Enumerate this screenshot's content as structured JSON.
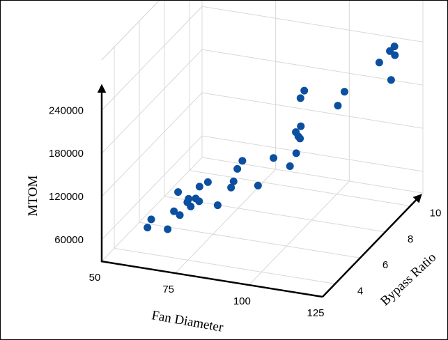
{
  "chart_data": {
    "type": "scatter",
    "projection": "3d",
    "title": "",
    "xlabel": "Fan Diameter",
    "ylabel": "Bypass Ratio",
    "zlabel": "MTOM",
    "xlim": [
      50,
      125
    ],
    "ylim": [
      3,
      11
    ],
    "zlim": [
      30000,
      310000
    ],
    "xticks": [
      "50",
      "75",
      "100",
      "125"
    ],
    "yticks": [
      "4",
      "6",
      "8",
      "10"
    ],
    "zticks": [
      "60000",
      "120000",
      "180000",
      "240000"
    ],
    "grid": true,
    "marker_color": "#0b4fa0",
    "points": [
      {
        "x": 60,
        "y": 4.3,
        "z": 60000
      },
      {
        "x": 60,
        "y": 4.6,
        "z": 66000
      },
      {
        "x": 66,
        "y": 4.5,
        "z": 58000
      },
      {
        "x": 64,
        "y": 5.8,
        "z": 85000
      },
      {
        "x": 66,
        "y": 5.0,
        "z": 74000
      },
      {
        "x": 68,
        "y": 5.0,
        "z": 70000
      },
      {
        "x": 68,
        "y": 5.6,
        "z": 77000
      },
      {
        "x": 68,
        "y": 5.7,
        "z": 80000
      },
      {
        "x": 70,
        "y": 5.4,
        "z": 76000
      },
      {
        "x": 70,
        "y": 5.8,
        "z": 80000
      },
      {
        "x": 72,
        "y": 5.6,
        "z": 81000
      },
      {
        "x": 70,
        "y": 6.1,
        "z": 91000
      },
      {
        "x": 72,
        "y": 6.3,
        "z": 95000
      },
      {
        "x": 80,
        "y": 5.2,
        "z": 88000
      },
      {
        "x": 82,
        "y": 5.8,
        "z": 103000
      },
      {
        "x": 82,
        "y": 6.0,
        "z": 108000
      },
      {
        "x": 82,
        "y": 6.3,
        "z": 120000
      },
      {
        "x": 82,
        "y": 6.7,
        "z": 124000
      },
      {
        "x": 92,
        "y": 5.6,
        "z": 116000
      },
      {
        "x": 93,
        "y": 6.6,
        "z": 137000
      },
      {
        "x": 102,
        "y": 5.8,
        "z": 146000
      },
      {
        "x": 102,
        "y": 6.3,
        "z": 155000
      },
      {
        "x": 102,
        "y": 6.6,
        "z": 170000
      },
      {
        "x": 101,
        "y": 6.5,
        "z": 180000
      },
      {
        "x": 101,
        "y": 6.9,
        "z": 181000
      },
      {
        "x": 104,
        "y": 6.0,
        "z": 185000
      },
      {
        "x": 106,
        "y": 5.7,
        "z": 245000
      },
      {
        "x": 106,
        "y": 6.0,
        "z": 250000
      },
      {
        "x": 112,
        "y": 7.8,
        "z": 220000
      },
      {
        "x": 114,
        "y": 6.8,
        "z": 220000
      },
      {
        "x": 117,
        "y": 9.4,
        "z": 235000
      },
      {
        "x": 124,
        "y": 8.6,
        "z": 270000
      },
      {
        "x": 123,
        "y": 9.2,
        "z": 265000
      },
      {
        "x": 124,
        "y": 9.0,
        "z": 257000
      },
      {
        "x": 124,
        "y": 8.7,
        "z": 228000
      }
    ]
  }
}
